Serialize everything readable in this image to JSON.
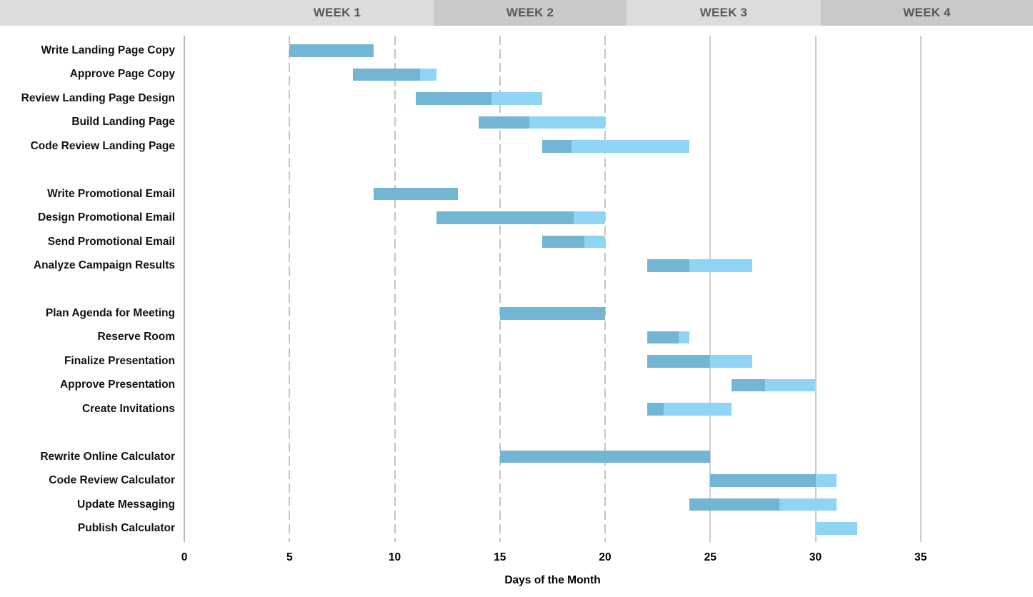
{
  "header": {
    "weeks": [
      "WEEK 1",
      "WEEK 2",
      "WEEK 3",
      "WEEK 4"
    ],
    "band_light_color": "#dcdcdc",
    "band_dark_color": "#c9c9c9",
    "text_color": "#595959"
  },
  "chart_data": {
    "type": "bar",
    "subtype": "gantt",
    "xlabel": "Days of the Month",
    "x_ticks": [
      0,
      5,
      10,
      15,
      20,
      25,
      30,
      35
    ],
    "x_range": [
      0,
      40
    ],
    "grid": "vertical, dashed for days 5-20, solid for days 25-35",
    "legend": "none",
    "bar_colors": {
      "completed": "#73b6d3",
      "remaining": "#8fd4f3"
    },
    "tasks": [
      {
        "name": "Write Landing Page Copy",
        "row": 0,
        "start": 5,
        "end": 9,
        "completed_until": 9
      },
      {
        "name": "Approve Page Copy",
        "row": 1,
        "start": 8,
        "end": 12,
        "completed_until": 11.2
      },
      {
        "name": "Review Landing Page Design",
        "row": 2,
        "start": 11,
        "end": 17,
        "completed_until": 14.6
      },
      {
        "name": "Build Landing Page",
        "row": 3,
        "start": 14,
        "end": 20,
        "completed_until": 16.4
      },
      {
        "name": "Code Review Landing Page",
        "row": 4,
        "start": 17,
        "end": 24,
        "completed_until": 18.4
      },
      {
        "name": "Write Promotional Email",
        "row": 6,
        "start": 9,
        "end": 13,
        "completed_until": 13
      },
      {
        "name": "Design Promotional Email",
        "row": 7,
        "start": 12,
        "end": 20,
        "completed_until": 18.5
      },
      {
        "name": "Send Promotional Email",
        "row": 8,
        "start": 17,
        "end": 20,
        "completed_until": 19
      },
      {
        "name": "Analyze Campaign Results",
        "row": 9,
        "start": 22,
        "end": 27,
        "completed_until": 24
      },
      {
        "name": "Plan Agenda for Meeting",
        "row": 11,
        "start": 15,
        "end": 20,
        "completed_until": 20
      },
      {
        "name": "Reserve Room",
        "row": 12,
        "start": 22,
        "end": 24,
        "completed_until": 23.5
      },
      {
        "name": "Finalize Presentation",
        "row": 13,
        "start": 22,
        "end": 27,
        "completed_until": 25
      },
      {
        "name": "Approve Presentation",
        "row": 14,
        "start": 26,
        "end": 30,
        "completed_until": 27.6
      },
      {
        "name": "Create Invitations",
        "row": 15,
        "start": 22,
        "end": 26,
        "completed_until": 22.8
      },
      {
        "name": "Rewrite Online Calculator",
        "row": 17,
        "start": 15,
        "end": 25,
        "completed_until": 25
      },
      {
        "name": "Code Review Calculator",
        "row": 18,
        "start": 25,
        "end": 31,
        "completed_until": 30
      },
      {
        "name": "Update Messaging",
        "row": 19,
        "start": 24,
        "end": 31,
        "completed_until": 28.3
      },
      {
        "name": "Publish Calculator",
        "row": 20,
        "start": 30,
        "end": 32,
        "completed_until": 30
      }
    ]
  }
}
